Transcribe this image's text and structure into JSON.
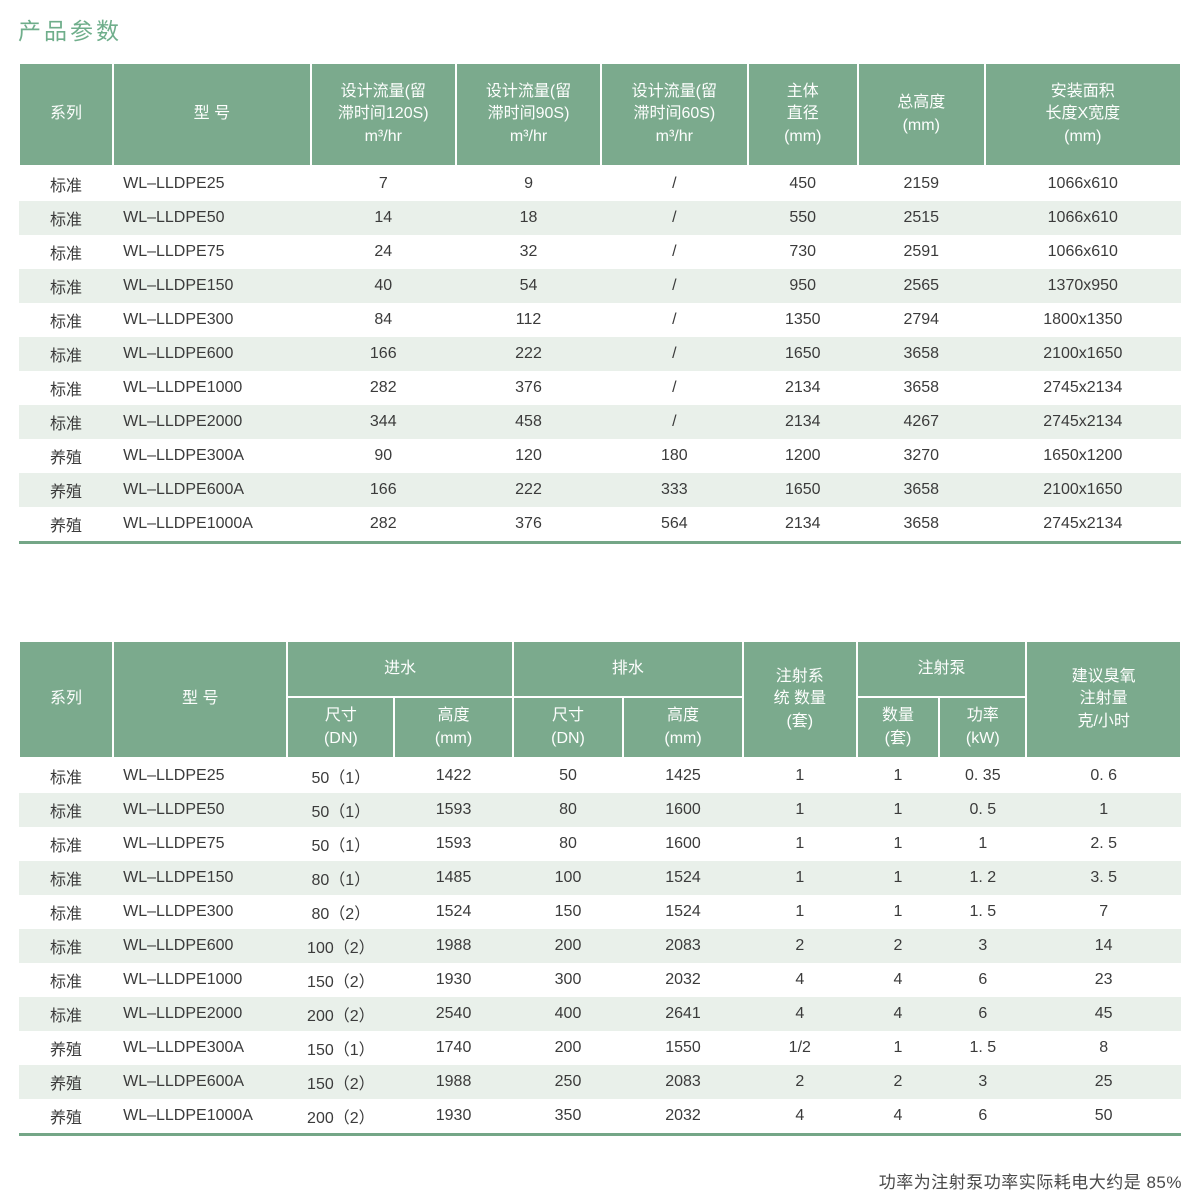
{
  "page": {
    "title": "产品参数",
    "footnote": "功率为注射泵功率实际耗电大约是 85%"
  },
  "colors": {
    "header_green": "#7baa8d",
    "stripe_green": "#e9f0ea",
    "accent_line_green": "#74a687",
    "title_green": "#6fae8b",
    "body_text": "#3b3b3b",
    "header_text": "#ffffff"
  },
  "table1": {
    "headers": {
      "series": "系列",
      "model": "型  号",
      "flow_120s": "设计流量(留\n滞时间120S)\nm³/hr",
      "flow_90s": "设计流量(留\n滞时间90S)\nm³/hr",
      "flow_60s": "设计流量(留\n滞时间60S)\nm³/hr",
      "body_diameter": "主体\n直径\n(mm)",
      "total_height": "总高度\n(mm)",
      "install_area": "安装面积\n长度X宽度\n(mm)"
    },
    "rows": [
      [
        "标准",
        "WL–LLDPE25",
        "7",
        "9",
        "/",
        "450",
        "2159",
        "1066x610"
      ],
      [
        "标准",
        "WL–LLDPE50",
        "14",
        "18",
        "/",
        "550",
        "2515",
        "1066x610"
      ],
      [
        "标准",
        "WL–LLDPE75",
        "24",
        "32",
        "/",
        "730",
        "2591",
        "1066x610"
      ],
      [
        "标准",
        "WL–LLDPE150",
        "40",
        "54",
        "/",
        "950",
        "2565",
        "1370x950"
      ],
      [
        "标准",
        "WL–LLDPE300",
        "84",
        "112",
        "/",
        "1350",
        "2794",
        "1800x1350"
      ],
      [
        "标准",
        "WL–LLDPE600",
        "166",
        "222",
        "/",
        "1650",
        "3658",
        "2100x1650"
      ],
      [
        "标准",
        "WL–LLDPE1000",
        "282",
        "376",
        "/",
        "2134",
        "3658",
        "2745x2134"
      ],
      [
        "标准",
        "WL–LLDPE2000",
        "344",
        "458",
        "/",
        "2134",
        "4267",
        "2745x2134"
      ],
      [
        "养殖",
        "WL–LLDPE300A",
        "90",
        "120",
        "180",
        "1200",
        "3270",
        "1650x1200"
      ],
      [
        "养殖",
        "WL–LLDPE600A",
        "166",
        "222",
        "333",
        "1650",
        "3658",
        "2100x1650"
      ],
      [
        "养殖",
        "WL–LLDPE1000A",
        "282",
        "376",
        "564",
        "2134",
        "3658",
        "2745x2134"
      ]
    ]
  },
  "table2": {
    "headers": {
      "series": "系列",
      "model": "型 号",
      "inlet_group": "进水",
      "outlet_group": "排水",
      "size_dn": "尺寸\n(DN)",
      "height_mm": "高度\n(mm)",
      "injection_system": "注射系\n统 数量\n(套)",
      "injection_pump_group": "注射泵",
      "pump_qty": "数量\n(套)",
      "pump_power": "功率\n(kW)",
      "ozone_dose": "建议臭氧\n注射量\n克/小时"
    },
    "rows": [
      [
        "标准",
        "WL–LLDPE25",
        "50（1）",
        "1422",
        "50",
        "1425",
        "1",
        "1",
        "0. 35",
        "0. 6"
      ],
      [
        "标准",
        "WL–LLDPE50",
        "50（1）",
        "1593",
        "80",
        "1600",
        "1",
        "1",
        "0. 5",
        "1"
      ],
      [
        "标准",
        "WL–LLDPE75",
        "50（1）",
        "1593",
        "80",
        "1600",
        "1",
        "1",
        "1",
        "2. 5"
      ],
      [
        "标准",
        "WL–LLDPE150",
        "80（1）",
        "1485",
        "100",
        "1524",
        "1",
        "1",
        "1. 2",
        "3. 5"
      ],
      [
        "标准",
        "WL–LLDPE300",
        "80（2）",
        "1524",
        "150",
        "1524",
        "1",
        "1",
        "1. 5",
        "7"
      ],
      [
        "标准",
        "WL–LLDPE600",
        "100（2）",
        "1988",
        "200",
        "2083",
        "2",
        "2",
        "3",
        "14"
      ],
      [
        "标准",
        "WL–LLDPE1000",
        "150（2）",
        "1930",
        "300",
        "2032",
        "4",
        "4",
        "6",
        "23"
      ],
      [
        "标准",
        "WL–LLDPE2000",
        "200（2）",
        "2540",
        "400",
        "2641",
        "4",
        "4",
        "6",
        "45"
      ],
      [
        "养殖",
        "WL–LLDPE300A",
        "150（1）",
        "1740",
        "200",
        "1550",
        "1/2",
        "1",
        "1. 5",
        "8"
      ],
      [
        "养殖",
        "WL–LLDPE600A",
        "150（2）",
        "1988",
        "250",
        "2083",
        "2",
        "2",
        "3",
        "25"
      ],
      [
        "养殖",
        "WL–LLDPE1000A",
        "200（2）",
        "1930",
        "350",
        "2032",
        "4",
        "4",
        "6",
        "50"
      ]
    ]
  }
}
